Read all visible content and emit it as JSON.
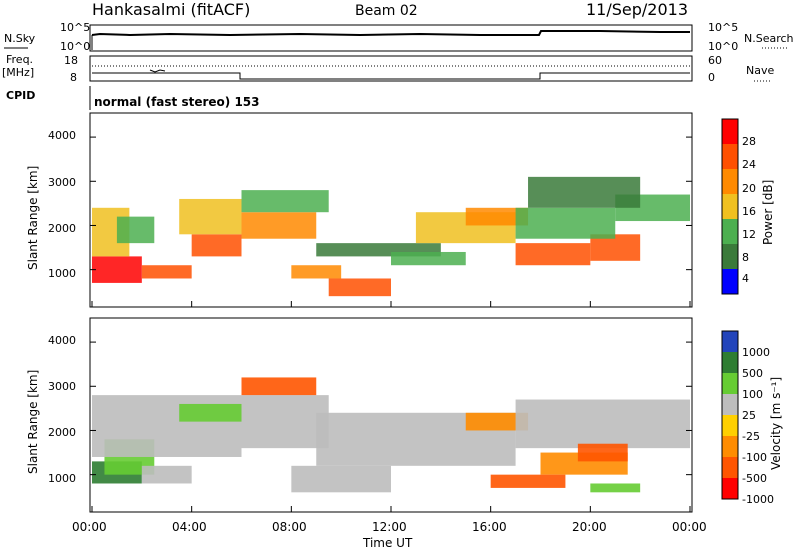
{
  "header": {
    "radar": "Hankasalmi (fitACF)",
    "beam": "Beam 02",
    "date": "11/Sep/2013"
  },
  "panels": {
    "sky": {
      "label": "N.Sky",
      "ticks_left": [
        "10^5",
        "10^0"
      ],
      "ticks_right": [
        "10^5",
        "10^0"
      ],
      "right_label": "N.Search"
    },
    "freq": {
      "label_line1": "Freq.",
      "label_line2": "[MHz]",
      "ticks_left": [
        "18",
        "8"
      ],
      "ticks_right": [
        "60",
        "0"
      ],
      "right_label": "Nave",
      "cpid_label": "CPID"
    },
    "mode_text": "normal (fast stereo) 153"
  },
  "colors": {
    "power": [
      "#0000ff",
      "#3a7a3a",
      "#4caf50",
      "#f0c020",
      "#ff8a00",
      "#ff5000",
      "#ff0000"
    ],
    "velocity": [
      "#2244bb",
      "#2e7d32",
      "#66cc33",
      "#bdbdbd",
      "#ffd000",
      "#ff8c00",
      "#ff5500",
      "#ff0000"
    ]
  },
  "chart_data": [
    {
      "type": "heatmap",
      "title": "Power",
      "ylabel": "Slant Range [km]",
      "ylim": [
        200,
        4500
      ],
      "yticks": [
        "4000",
        "3000",
        "2000",
        "1000"
      ],
      "xlim": [
        "00:00",
        "24:00"
      ],
      "colorbar": {
        "label": "Power [dB]",
        "ticks": [
          "28",
          "24",
          "20",
          "16",
          "12",
          "8",
          "4"
        ],
        "range": [
          0,
          30
        ]
      },
      "regions": [
        {
          "t0": 0.0,
          "t1": 2.0,
          "r0": 700,
          "r1": 1300,
          "level": 28
        },
        {
          "t0": 2.0,
          "t1": 4.0,
          "r0": 800,
          "r1": 1100,
          "level": 22
        },
        {
          "t0": 0.0,
          "t1": 1.5,
          "r0": 1300,
          "r1": 2400,
          "level": 14
        },
        {
          "t0": 1.0,
          "t1": 2.5,
          "r0": 1600,
          "r1": 2200,
          "level": 10
        },
        {
          "t0": 4.0,
          "t1": 6.0,
          "r0": 1300,
          "r1": 1800,
          "level": 22
        },
        {
          "t0": 3.5,
          "t1": 6.0,
          "r0": 1800,
          "r1": 2600,
          "level": 14
        },
        {
          "t0": 6.0,
          "t1": 9.0,
          "r0": 1700,
          "r1": 2300,
          "level": 18
        },
        {
          "t0": 6.0,
          "t1": 9.5,
          "r0": 2300,
          "r1": 2800,
          "level": 10
        },
        {
          "t0": 8.0,
          "t1": 10.0,
          "r0": 800,
          "r1": 1100,
          "level": 18
        },
        {
          "t0": 9.5,
          "t1": 12.0,
          "r0": 400,
          "r1": 800,
          "level": 24
        },
        {
          "t0": 9.0,
          "t1": 14.0,
          "r0": 1300,
          "r1": 1600,
          "level": 8
        },
        {
          "t0": 12.0,
          "t1": 15.0,
          "r0": 1100,
          "r1": 1400,
          "level": 10
        },
        {
          "t0": 13.0,
          "t1": 17.0,
          "r0": 1600,
          "r1": 2300,
          "level": 14
        },
        {
          "t0": 15.0,
          "t1": 17.5,
          "r0": 2000,
          "r1": 2400,
          "level": 20
        },
        {
          "t0": 17.0,
          "t1": 20.0,
          "r0": 1100,
          "r1": 1600,
          "level": 22
        },
        {
          "t0": 20.0,
          "t1": 22.0,
          "r0": 1200,
          "r1": 1800,
          "level": 24
        },
        {
          "t0": 17.0,
          "t1": 21.0,
          "r0": 1700,
          "r1": 2400,
          "level": 12
        },
        {
          "t0": 21.0,
          "t1": 24.0,
          "r0": 2100,
          "r1": 2700,
          "level": 12
        },
        {
          "t0": 17.5,
          "t1": 22.0,
          "r0": 2400,
          "r1": 3100,
          "level": 6
        }
      ]
    },
    {
      "type": "heatmap",
      "title": "Velocity",
      "ylabel": "Slant Range [km]",
      "xlabel": "Time UT",
      "ylim": [
        200,
        4500
      ],
      "yticks": [
        "4000",
        "3000",
        "2000",
        "1000"
      ],
      "xticks": [
        "00:00",
        "04:00",
        "08:00",
        "12:00",
        "16:00",
        "20:00",
        "00:00"
      ],
      "colorbar": {
        "label": "Velocity [m s⁻¹]",
        "ticks": [
          "1000",
          "500",
          "100",
          "25",
          "-25",
          "-100",
          "-500",
          "-1000"
        ]
      },
      "regions": [
        {
          "t0": 0.0,
          "t1": 2.0,
          "r0": 800,
          "r1": 1300,
          "level": 1
        },
        {
          "t0": 0.5,
          "t1": 2.5,
          "r0": 1000,
          "r1": 1800,
          "level": 2
        },
        {
          "t0": 2.0,
          "t1": 4.0,
          "r0": 800,
          "r1": 1200,
          "level": 3
        },
        {
          "t0": 0.0,
          "t1": 6.0,
          "r0": 1400,
          "r1": 2800,
          "level": 3
        },
        {
          "t0": 3.5,
          "t1": 6.0,
          "r0": 2200,
          "r1": 2600,
          "level": 2
        },
        {
          "t0": 6.0,
          "t1": 9.5,
          "r0": 1600,
          "r1": 2800,
          "level": 3
        },
        {
          "t0": 6.0,
          "t1": 9.0,
          "r0": 2800,
          "r1": 3200,
          "level": 6
        },
        {
          "t0": 8.0,
          "t1": 12.0,
          "r0": 600,
          "r1": 1200,
          "level": 3
        },
        {
          "t0": 9.0,
          "t1": 17.0,
          "r0": 1200,
          "r1": 2400,
          "level": 3
        },
        {
          "t0": 15.0,
          "t1": 17.5,
          "r0": 2000,
          "r1": 2400,
          "level": 5
        },
        {
          "t0": 17.0,
          "t1": 24.0,
          "r0": 1600,
          "r1": 2700,
          "level": 3
        },
        {
          "t0": 18.0,
          "t1": 21.5,
          "r0": 1000,
          "r1": 1500,
          "level": 5
        },
        {
          "t0": 19.5,
          "t1": 21.5,
          "r0": 1300,
          "r1": 1700,
          "level": 6
        },
        {
          "t0": 16.0,
          "t1": 19.0,
          "r0": 700,
          "r1": 1000,
          "level": 6
        },
        {
          "t0": 20.0,
          "t1": 22.0,
          "r0": 600,
          "r1": 800,
          "level": 2
        }
      ]
    }
  ]
}
